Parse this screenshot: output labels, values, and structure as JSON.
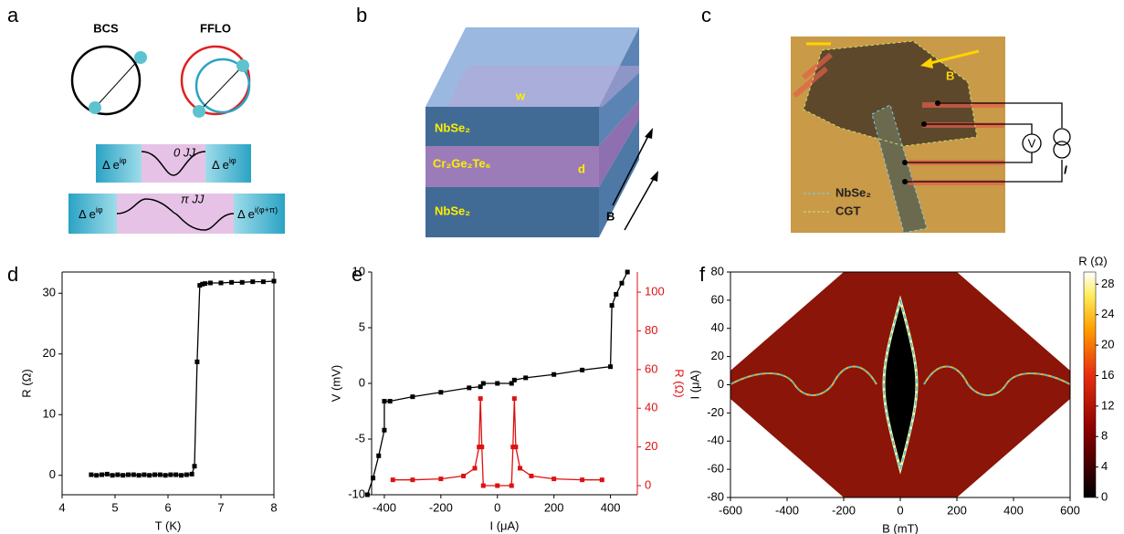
{
  "panels": {
    "a": "a",
    "b": "b",
    "c": "c",
    "d": "d",
    "e": "e",
    "f": "f"
  },
  "diagram_a": {
    "bcs": "BCS",
    "fflo": "FFLO",
    "jj0": "0 JJ",
    "jjpi": "π JJ",
    "left0": {
      "base": "Δ e",
      "sup": "iφ"
    },
    "right0": {
      "base": "Δ e",
      "sup": "iφ"
    },
    "leftpi": {
      "base": "Δ e",
      "sup": "iφ"
    },
    "rightpi": {
      "base": "Δ e",
      "sup": "i(φ+π)"
    }
  },
  "diagram_b": {
    "w": "w",
    "top_layer": "NbSe₂",
    "middle_layer": "Cr₂Ge₂Te₆",
    "d": "d",
    "bottom_layer": "NbSe₂",
    "field": "B"
  },
  "diagram_c": {
    "field": "B",
    "voltmeter": "V",
    "current": "I",
    "legend_nbse2": "NbSe₂",
    "legend_cgt": "CGT"
  },
  "chart_data": [
    {
      "type": "line",
      "xlabel": "T (K)",
      "ylabel": "R (Ω)",
      "xlim": [
        4,
        8
      ],
      "ylim": [
        -3.2,
        33.5
      ],
      "xticks": [
        4,
        5,
        6,
        7,
        8
      ],
      "yticks": [
        0,
        10,
        20,
        30
      ],
      "series": [
        {
          "color": "#000000",
          "x": [
            4.55,
            4.65,
            4.75,
            4.85,
            4.95,
            5.05,
            5.15,
            5.25,
            5.35,
            5.45,
            5.55,
            5.65,
            5.75,
            5.85,
            5.95,
            6.05,
            6.15,
            6.25,
            6.35,
            6.45,
            6.5,
            6.55,
            6.6,
            6.65,
            6.7,
            6.8,
            7.0,
            7.2,
            7.4,
            7.6,
            7.8,
            8.0
          ],
          "values": [
            0.1,
            0,
            0.1,
            0.2,
            0,
            0.1,
            0,
            0.1,
            0.1,
            0,
            0.1,
            0,
            0.1,
            0.1,
            0,
            0.1,
            0.1,
            0,
            0.1,
            0.2,
            1.5,
            18.7,
            31.3,
            31.5,
            31.6,
            31.7,
            31.7,
            31.8,
            31.8,
            31.9,
            31.9,
            32.0
          ]
        }
      ]
    },
    {
      "type": "line",
      "xlabel": "I (μA)",
      "ylabel": "V (mV)",
      "y2label": "R (Ω)",
      "xlim": [
        -445,
        495
      ],
      "ylim": [
        -10,
        10
      ],
      "y2lim": [
        -4.7,
        110.4
      ],
      "xticks": [
        -400,
        -200,
        0,
        200,
        400
      ],
      "yticks": [
        -10,
        -5,
        0,
        5,
        10
      ],
      "y2ticks": [
        0,
        20,
        40,
        60,
        80,
        100
      ],
      "y2color": "#dd1111",
      "series": [
        {
          "color": "#000000",
          "x": [
            -460,
            -440,
            -420,
            -400,
            -400,
            -380,
            -300,
            -200,
            -100,
            -60,
            -50,
            0,
            50,
            60,
            100,
            200,
            300,
            400,
            405,
            420,
            440,
            460
          ],
          "values": [
            -10,
            -8.5,
            -6.5,
            -4.2,
            -1.6,
            -1.6,
            -1.2,
            -0.8,
            -0.4,
            -0.3,
            0,
            0,
            0,
            0.3,
            0.5,
            0.8,
            1.2,
            1.5,
            7,
            8,
            9,
            10
          ]
        },
        {
          "color": "#dd1111",
          "axis": "y2",
          "x": [
            -370,
            -300,
            -200,
            -120,
            -80,
            -65,
            -60,
            -55,
            -50,
            0,
            50,
            55,
            60,
            65,
            80,
            120,
            200,
            300,
            370
          ],
          "values": [
            3,
            3,
            3.5,
            5,
            9,
            20,
            45,
            20,
            0,
            0,
            0,
            20,
            45,
            20,
            9,
            5,
            3.5,
            3,
            3
          ]
        }
      ]
    },
    {
      "type": "heatmap",
      "xlabel": "B (mT)",
      "ylabel": "I (μA)",
      "clabel": "R (Ω)",
      "xlim": [
        -600,
        600
      ],
      "ylim": [
        -80,
        80
      ],
      "clim": [
        0,
        29.6
      ],
      "xticks": [
        -600,
        -400,
        -200,
        0,
        200,
        400,
        600
      ],
      "yticks": [
        -80,
        -60,
        -40,
        -20,
        0,
        20,
        40,
        60,
        80
      ],
      "cticks": [
        0,
        4,
        8,
        12,
        16,
        20,
        24,
        28
      ]
    }
  ]
}
